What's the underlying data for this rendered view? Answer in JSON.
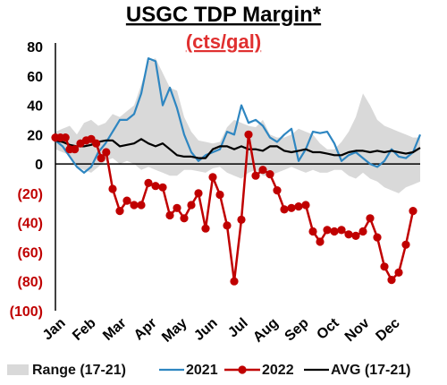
{
  "chart_data": {
    "type": "line",
    "title": "USGC TDP Margin*",
    "subtitle": "(cts/gal)",
    "ylim": [
      -100,
      80
    ],
    "y_ticks": [
      80,
      60,
      40,
      20,
      0,
      -20,
      -40,
      -60,
      -80,
      -100
    ],
    "y_tick_labels": [
      "80",
      "60",
      "40",
      "20",
      "0",
      "(20)",
      "(40)",
      "(60)",
      "(80)",
      "(100)"
    ],
    "months": [
      "Jan",
      "Feb",
      "Mar",
      "Apr",
      "May",
      "Jun",
      "Jul",
      "Aug",
      "Sep",
      "Oct",
      "Nov",
      "Dec"
    ],
    "x_week_range": [
      1,
      52
    ],
    "grid": false,
    "legend": {
      "position": "bottom",
      "items": [
        {
          "label": "Range (17-21)",
          "type": "area",
          "color": "#d9d9d9"
        },
        {
          "label": "2021",
          "type": "line",
          "color": "#2e86c1"
        },
        {
          "label": "2022",
          "type": "line-marker",
          "color": "#c00000"
        },
        {
          "label": "AVG (17-21)",
          "type": "line",
          "color": "#000000"
        }
      ]
    },
    "range_band": {
      "name": "Range (17-21)",
      "color": "#d9d9d9",
      "high": [
        [
          1,
          22
        ],
        [
          2,
          24
        ],
        [
          3,
          26
        ],
        [
          4,
          20
        ],
        [
          5,
          28
        ],
        [
          6,
          30
        ],
        [
          7,
          26
        ],
        [
          8,
          28
        ],
        [
          9,
          34
        ],
        [
          10,
          32
        ],
        [
          11,
          36
        ],
        [
          12,
          40
        ],
        [
          13,
          54
        ],
        [
          14,
          70
        ],
        [
          15,
          72
        ],
        [
          16,
          62
        ],
        [
          17,
          52
        ],
        [
          18,
          50
        ],
        [
          19,
          32
        ],
        [
          20,
          22
        ],
        [
          21,
          16
        ],
        [
          22,
          15
        ],
        [
          23,
          14
        ],
        [
          24,
          15
        ],
        [
          25,
          25
        ],
        [
          26,
          30
        ],
        [
          27,
          28
        ],
        [
          28,
          26
        ],
        [
          29,
          25
        ],
        [
          30,
          30
        ],
        [
          31,
          20
        ],
        [
          32,
          18
        ],
        [
          33,
          18
        ],
        [
          34,
          20
        ],
        [
          35,
          24
        ],
        [
          36,
          22
        ],
        [
          37,
          20
        ],
        [
          38,
          14
        ],
        [
          39,
          10
        ],
        [
          40,
          10
        ],
        [
          41,
          15
        ],
        [
          42,
          22
        ],
        [
          43,
          32
        ],
        [
          44,
          48
        ],
        [
          45,
          40
        ],
        [
          46,
          30
        ],
        [
          47,
          26
        ],
        [
          48,
          24
        ],
        [
          49,
          22
        ],
        [
          50,
          20
        ],
        [
          51,
          18
        ],
        [
          52,
          18
        ]
      ],
      "low": [
        [
          1,
          10
        ],
        [
          2,
          8
        ],
        [
          3,
          6
        ],
        [
          4,
          -2
        ],
        [
          5,
          -4
        ],
        [
          6,
          -6
        ],
        [
          7,
          -2
        ],
        [
          8,
          2
        ],
        [
          9,
          4
        ],
        [
          10,
          0
        ],
        [
          11,
          2
        ],
        [
          12,
          0
        ],
        [
          13,
          -4
        ],
        [
          14,
          -2
        ],
        [
          15,
          -4
        ],
        [
          16,
          -6
        ],
        [
          17,
          -8
        ],
        [
          18,
          -8
        ],
        [
          19,
          -4
        ],
        [
          20,
          -4
        ],
        [
          21,
          -5
        ],
        [
          22,
          -6
        ],
        [
          23,
          -3
        ],
        [
          24,
          -2
        ],
        [
          25,
          -6
        ],
        [
          26,
          -8
        ],
        [
          27,
          -10
        ],
        [
          28,
          -6
        ],
        [
          29,
          -4
        ],
        [
          30,
          -8
        ],
        [
          31,
          -8
        ],
        [
          32,
          -6
        ],
        [
          33,
          -4
        ],
        [
          34,
          -2
        ],
        [
          35,
          -4
        ],
        [
          36,
          -6
        ],
        [
          37,
          -4
        ],
        [
          38,
          -6
        ],
        [
          39,
          -6
        ],
        [
          40,
          -4
        ],
        [
          41,
          -4
        ],
        [
          42,
          -8
        ],
        [
          43,
          -10
        ],
        [
          44,
          -6
        ],
        [
          45,
          -10
        ],
        [
          46,
          -12
        ],
        [
          47,
          -16
        ],
        [
          48,
          -18
        ],
        [
          49,
          -20
        ],
        [
          50,
          -16
        ],
        [
          51,
          -14
        ],
        [
          52,
          -12
        ]
      ]
    },
    "series": [
      {
        "name": "2021",
        "color": "#2e86c1",
        "points": [
          [
            1,
            16
          ],
          [
            2,
            12
          ],
          [
            3,
            5
          ],
          [
            4,
            -2
          ],
          [
            5,
            -6
          ],
          [
            6,
            -2
          ],
          [
            7,
            8
          ],
          [
            8,
            14
          ],
          [
            9,
            22
          ],
          [
            10,
            30
          ],
          [
            11,
            30
          ],
          [
            12,
            34
          ],
          [
            13,
            48
          ],
          [
            14,
            72
          ],
          [
            15,
            70
          ],
          [
            16,
            40
          ],
          [
            17,
            52
          ],
          [
            18,
            38
          ],
          [
            19,
            20
          ],
          [
            20,
            8
          ],
          [
            21,
            2
          ],
          [
            22,
            6
          ],
          [
            23,
            8
          ],
          [
            24,
            10
          ],
          [
            25,
            22
          ],
          [
            26,
            20
          ],
          [
            27,
            40
          ],
          [
            28,
            28
          ],
          [
            29,
            30
          ],
          [
            30,
            26
          ],
          [
            31,
            18
          ],
          [
            32,
            15
          ],
          [
            33,
            20
          ],
          [
            34,
            24
          ],
          [
            35,
            2
          ],
          [
            36,
            10
          ],
          [
            37,
            22
          ],
          [
            38,
            21
          ],
          [
            39,
            22
          ],
          [
            40,
            14
          ],
          [
            41,
            2
          ],
          [
            42,
            6
          ],
          [
            43,
            8
          ],
          [
            44,
            4
          ],
          [
            45,
            0
          ],
          [
            46,
            -2
          ],
          [
            47,
            2
          ],
          [
            48,
            10
          ],
          [
            49,
            5
          ],
          [
            50,
            4
          ],
          [
            51,
            8
          ],
          [
            52,
            20
          ]
        ]
      },
      {
        "name": "2022",
        "color": "#c00000",
        "marker": "circle",
        "points": [
          [
            1,
            18
          ],
          [
            1.7,
            18
          ],
          [
            2.4,
            18
          ],
          [
            3,
            10
          ],
          [
            3.7,
            10
          ],
          [
            4.5,
            14
          ],
          [
            5.3,
            16
          ],
          [
            6,
            17
          ],
          [
            6.7,
            14
          ],
          [
            7.4,
            4
          ],
          [
            8.1,
            8
          ],
          [
            9,
            -17
          ],
          [
            10,
            -32
          ],
          [
            11,
            -25
          ],
          [
            12,
            -28
          ],
          [
            13,
            -28
          ],
          [
            14,
            -13
          ],
          [
            15,
            -15
          ],
          [
            16,
            -16
          ],
          [
            17,
            -35
          ],
          [
            18,
            -30
          ],
          [
            19,
            -37
          ],
          [
            20,
            -28
          ],
          [
            21,
            -20
          ],
          [
            22,
            -44
          ],
          [
            23,
            -9
          ],
          [
            24,
            -21
          ],
          [
            25,
            -42
          ],
          [
            26,
            -80
          ],
          [
            27,
            -38
          ],
          [
            28,
            20
          ],
          [
            29,
            -8
          ],
          [
            30,
            -4
          ],
          [
            31,
            -7
          ],
          [
            32,
            -18
          ],
          [
            33,
            -31
          ],
          [
            34,
            -30
          ],
          [
            35,
            -29
          ],
          [
            36,
            -28
          ],
          [
            37,
            -46
          ],
          [
            38,
            -53
          ],
          [
            39,
            -45
          ],
          [
            40,
            -46
          ],
          [
            41,
            -45
          ],
          [
            42,
            -48
          ],
          [
            43,
            -49
          ],
          [
            44,
            -46
          ],
          [
            45,
            -37
          ],
          [
            46,
            -50
          ],
          [
            47,
            -70
          ],
          [
            48,
            -79
          ],
          [
            49,
            -74
          ],
          [
            50,
            -55
          ],
          [
            51,
            -32
          ]
        ]
      },
      {
        "name": "AVG (17-21)",
        "color": "#000000",
        "points": [
          [
            1,
            16
          ],
          [
            2,
            15
          ],
          [
            3,
            13
          ],
          [
            4,
            12
          ],
          [
            5,
            12
          ],
          [
            6,
            13
          ],
          [
            7,
            15
          ],
          [
            8,
            16
          ],
          [
            9,
            16
          ],
          [
            10,
            12
          ],
          [
            11,
            13
          ],
          [
            12,
            14
          ],
          [
            13,
            17
          ],
          [
            14,
            14
          ],
          [
            15,
            12
          ],
          [
            16,
            14
          ],
          [
            17,
            10
          ],
          [
            18,
            6
          ],
          [
            19,
            5
          ],
          [
            20,
            5
          ],
          [
            21,
            4
          ],
          [
            22,
            4
          ],
          [
            23,
            10
          ],
          [
            24,
            12
          ],
          [
            25,
            12
          ],
          [
            26,
            10
          ],
          [
            27,
            12
          ],
          [
            28,
            10
          ],
          [
            29,
            10
          ],
          [
            30,
            9
          ],
          [
            31,
            12
          ],
          [
            32,
            12
          ],
          [
            33,
            9
          ],
          [
            34,
            8
          ],
          [
            35,
            9
          ],
          [
            36,
            10
          ],
          [
            37,
            8
          ],
          [
            38,
            8
          ],
          [
            39,
            7
          ],
          [
            40,
            6
          ],
          [
            41,
            6
          ],
          [
            42,
            8
          ],
          [
            43,
            9
          ],
          [
            44,
            9
          ],
          [
            45,
            8
          ],
          [
            46,
            9
          ],
          [
            47,
            8
          ],
          [
            48,
            9
          ],
          [
            49,
            8
          ],
          [
            50,
            7
          ],
          [
            51,
            8
          ],
          [
            52,
            11
          ]
        ]
      }
    ]
  }
}
